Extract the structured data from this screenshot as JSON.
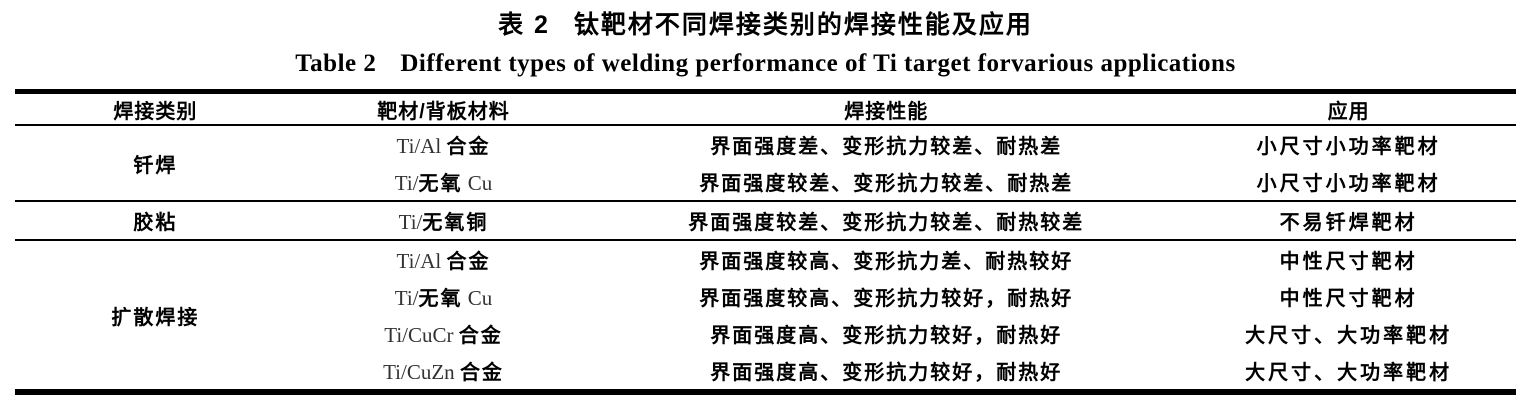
{
  "titles": {
    "cn_label": "表 2",
    "cn_text": "钛靶材不同焊接类别的焊接性能及应用",
    "en_label": "Table 2",
    "en_text": "Different types of welding performance of Ti target forvarious applications"
  },
  "colors": {
    "text": "#000000",
    "rule": "#000000",
    "latin_text": "#333333",
    "background": "#ffffff"
  },
  "table": {
    "columns": [
      "焊接类别",
      "靶材/背板材料",
      "焊接性能",
      "应用"
    ],
    "groups": [
      {
        "category": "钎焊",
        "rows": [
          {
            "material": "Ti/Al 合金",
            "performance": "界面强度差、变形抗力较差、耐热差",
            "application": "小尺寸小功率靶材"
          },
          {
            "material": "Ti/无氧 Cu",
            "performance": "界面强度较差、变形抗力较差、耐热差",
            "application": "小尺寸小功率靶材"
          }
        ]
      },
      {
        "category": "胶粘",
        "rows": [
          {
            "material": "Ti/无氧铜",
            "performance": "界面强度较差、变形抗力较差、耐热较差",
            "application": "不易钎焊靶材"
          }
        ]
      },
      {
        "category": "扩散焊接",
        "rows": [
          {
            "material": "Ti/Al 合金",
            "performance": "界面强度较高、变形抗力差、耐热较好",
            "application": "中性尺寸靶材"
          },
          {
            "material": "Ti/无氧 Cu",
            "performance": "界面强度较高、变形抗力较好，耐热好",
            "application": "中性尺寸靶材"
          },
          {
            "material": "Ti/CuCr 合金",
            "performance": "界面强度高、变形抗力较好，耐热好",
            "application": "大尺寸、大功率靶材"
          },
          {
            "material": "Ti/CuZn 合金",
            "performance": "界面强度高、变形抗力较好，耐热好",
            "application": "大尺寸、大功率靶材"
          }
        ]
      }
    ]
  }
}
